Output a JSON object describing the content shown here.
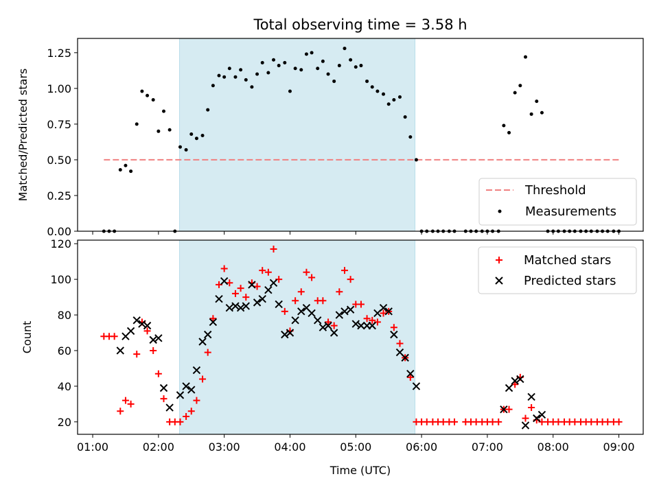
{
  "chart_data": [
    {
      "type": "scatter",
      "title": "Total observing time = 3.58 h",
      "xlabel": "",
      "ylabel": "Matched/Predicted stars",
      "ylim": [
        0,
        1.35
      ],
      "yticks": [
        0.0,
        0.25,
        0.5,
        0.75,
        1.0,
        1.25
      ],
      "ytick_labels": [
        "0.00",
        "0.25",
        "0.50",
        "0.75",
        "1.00",
        "1.25"
      ],
      "x_unit": "hours (UTC)",
      "shaded_interval": [
        2.32,
        5.9
      ],
      "threshold": {
        "name": "Threshold",
        "value": 0.5,
        "x_range": [
          1.17,
          9.0
        ],
        "color": "#f08080"
      },
      "series": [
        {
          "name": "Measurements",
          "color": "#000000",
          "points": [
            [
              1.17,
              0.0
            ],
            [
              1.25,
              0.0
            ],
            [
              1.33,
              0.0
            ],
            [
              1.42,
              0.43
            ],
            [
              1.5,
              0.46
            ],
            [
              1.58,
              0.42
            ],
            [
              1.67,
              0.75
            ],
            [
              1.75,
              0.98
            ],
            [
              1.83,
              0.95
            ],
            [
              1.92,
              0.92
            ],
            [
              2.0,
              0.7
            ],
            [
              2.08,
              0.84
            ],
            [
              2.17,
              0.71
            ],
            [
              2.25,
              0.0
            ],
            [
              2.33,
              0.59
            ],
            [
              2.42,
              0.57
            ],
            [
              2.5,
              0.68
            ],
            [
              2.58,
              0.65
            ],
            [
              2.67,
              0.67
            ],
            [
              2.75,
              0.85
            ],
            [
              2.83,
              1.02
            ],
            [
              2.92,
              1.09
            ],
            [
              3.0,
              1.08
            ],
            [
              3.08,
              1.14
            ],
            [
              3.17,
              1.08
            ],
            [
              3.25,
              1.13
            ],
            [
              3.33,
              1.06
            ],
            [
              3.42,
              1.01
            ],
            [
              3.5,
              1.1
            ],
            [
              3.58,
              1.18
            ],
            [
              3.67,
              1.11
            ],
            [
              3.75,
              1.2
            ],
            [
              3.83,
              1.16
            ],
            [
              3.92,
              1.18
            ],
            [
              4.0,
              0.98
            ],
            [
              4.08,
              1.14
            ],
            [
              4.17,
              1.13
            ],
            [
              4.25,
              1.24
            ],
            [
              4.33,
              1.25
            ],
            [
              4.42,
              1.14
            ],
            [
              4.5,
              1.19
            ],
            [
              4.58,
              1.1
            ],
            [
              4.67,
              1.05
            ],
            [
              4.75,
              1.16
            ],
            [
              4.83,
              1.28
            ],
            [
              4.92,
              1.2
            ],
            [
              5.0,
              1.15
            ],
            [
              5.08,
              1.16
            ],
            [
              5.17,
              1.05
            ],
            [
              5.25,
              1.01
            ],
            [
              5.33,
              0.98
            ],
            [
              5.42,
              0.96
            ],
            [
              5.5,
              0.89
            ],
            [
              5.58,
              0.92
            ],
            [
              5.67,
              0.94
            ],
            [
              5.75,
              0.8
            ],
            [
              5.83,
              0.66
            ],
            [
              5.92,
              0.5
            ],
            [
              6.0,
              0.0
            ],
            [
              6.08,
              0.0
            ],
            [
              6.17,
              0.0
            ],
            [
              6.25,
              0.0
            ],
            [
              6.33,
              0.0
            ],
            [
              6.42,
              0.0
            ],
            [
              6.5,
              0.0
            ],
            [
              6.67,
              0.0
            ],
            [
              6.75,
              0.0
            ],
            [
              6.83,
              0.0
            ],
            [
              6.92,
              0.0
            ],
            [
              7.0,
              0.0
            ],
            [
              7.08,
              0.0
            ],
            [
              7.17,
              0.0
            ],
            [
              7.25,
              0.74
            ],
            [
              7.33,
              0.69
            ],
            [
              7.42,
              0.97
            ],
            [
              7.5,
              1.02
            ],
            [
              7.58,
              1.22
            ],
            [
              7.67,
              0.82
            ],
            [
              7.75,
              0.91
            ],
            [
              7.83,
              0.83
            ],
            [
              7.92,
              0.0
            ],
            [
              8.0,
              0.0
            ],
            [
              8.08,
              0.0
            ],
            [
              8.17,
              0.0
            ],
            [
              8.25,
              0.0
            ],
            [
              8.33,
              0.0
            ],
            [
              8.42,
              0.0
            ],
            [
              8.5,
              0.0
            ],
            [
              8.58,
              0.0
            ],
            [
              8.67,
              0.0
            ],
            [
              8.75,
              0.0
            ],
            [
              8.83,
              0.0
            ],
            [
              8.92,
              0.0
            ],
            [
              9.0,
              0.0
            ]
          ]
        }
      ],
      "legend": {
        "position": "lower-right",
        "entries": [
          "Threshold",
          "Measurements"
        ]
      },
      "grid": false
    },
    {
      "type": "scatter",
      "title": "",
      "xlabel": "Time (UTC)",
      "ylabel": "Count",
      "ylim": [
        13,
        122
      ],
      "yticks": [
        20,
        40,
        60,
        80,
        100,
        120
      ],
      "ytick_labels": [
        "20",
        "40",
        "60",
        "80",
        "100",
        "120"
      ],
      "xlim": [
        0.77,
        9.37
      ],
      "xticks": [
        1,
        2,
        3,
        4,
        5,
        6,
        7,
        8,
        9
      ],
      "xtick_labels": [
        "01:00",
        "02:00",
        "03:00",
        "04:00",
        "05:00",
        "06:00",
        "07:00",
        "08:00",
        "09:00"
      ],
      "x_unit": "hours (UTC)",
      "shaded_interval": [
        2.32,
        5.9
      ],
      "series": [
        {
          "name": "Matched stars",
          "marker": "plus",
          "color": "#ff0000",
          "points": [
            [
              1.17,
              68
            ],
            [
              1.25,
              68
            ],
            [
              1.33,
              68
            ],
            [
              1.42,
              26
            ],
            [
              1.5,
              32
            ],
            [
              1.58,
              30
            ],
            [
              1.67,
              58
            ],
            [
              1.75,
              76
            ],
            [
              1.83,
              71
            ],
            [
              1.92,
              60
            ],
            [
              2.0,
              47
            ],
            [
              2.08,
              33
            ],
            [
              2.17,
              20
            ],
            [
              2.25,
              20
            ],
            [
              2.33,
              20
            ],
            [
              2.42,
              23
            ],
            [
              2.5,
              26
            ],
            [
              2.58,
              32
            ],
            [
              2.67,
              44
            ],
            [
              2.75,
              59
            ],
            [
              2.83,
              78
            ],
            [
              2.92,
              97
            ],
            [
              3.0,
              106
            ],
            [
              3.08,
              98
            ],
            [
              3.17,
              92
            ],
            [
              3.25,
              95
            ],
            [
              3.33,
              90
            ],
            [
              3.42,
              98
            ],
            [
              3.5,
              96
            ],
            [
              3.58,
              105
            ],
            [
              3.67,
              104
            ],
            [
              3.75,
              117
            ],
            [
              3.83,
              100
            ],
            [
              3.92,
              82
            ],
            [
              4.0,
              71
            ],
            [
              4.08,
              88
            ],
            [
              4.17,
              93
            ],
            [
              4.25,
              104
            ],
            [
              4.33,
              101
            ],
            [
              4.42,
              88
            ],
            [
              4.5,
              88
            ],
            [
              4.58,
              76
            ],
            [
              4.67,
              74
            ],
            [
              4.75,
              93
            ],
            [
              4.83,
              105
            ],
            [
              4.92,
              100
            ],
            [
              5.0,
              86
            ],
            [
              5.08,
              86
            ],
            [
              5.17,
              78
            ],
            [
              5.25,
              77
            ],
            [
              5.33,
              76
            ],
            [
              5.42,
              81
            ],
            [
              5.5,
              82
            ],
            [
              5.58,
              73
            ],
            [
              5.67,
              64
            ],
            [
              5.75,
              56
            ],
            [
              5.83,
              45
            ],
            [
              5.92,
              20
            ],
            [
              6.0,
              20
            ],
            [
              6.08,
              20
            ],
            [
              6.17,
              20
            ],
            [
              6.25,
              20
            ],
            [
              6.33,
              20
            ],
            [
              6.42,
              20
            ],
            [
              6.5,
              20
            ],
            [
              6.67,
              20
            ],
            [
              6.75,
              20
            ],
            [
              6.83,
              20
            ],
            [
              6.92,
              20
            ],
            [
              7.0,
              20
            ],
            [
              7.08,
              20
            ],
            [
              7.17,
              20
            ],
            [
              7.25,
              27
            ],
            [
              7.33,
              27
            ],
            [
              7.42,
              41
            ],
            [
              7.5,
              45
            ],
            [
              7.58,
              22
            ],
            [
              7.67,
              28
            ],
            [
              7.75,
              21
            ],
            [
              7.83,
              20
            ],
            [
              7.92,
              20
            ],
            [
              8.0,
              20
            ],
            [
              8.08,
              20
            ],
            [
              8.17,
              20
            ],
            [
              8.25,
              20
            ],
            [
              8.33,
              20
            ],
            [
              8.42,
              20
            ],
            [
              8.5,
              20
            ],
            [
              8.58,
              20
            ],
            [
              8.67,
              20
            ],
            [
              8.75,
              20
            ],
            [
              8.83,
              20
            ],
            [
              8.92,
              20
            ],
            [
              9.0,
              20
            ]
          ]
        },
        {
          "name": "Predicted stars",
          "marker": "x",
          "color": "#000000",
          "points": [
            [
              1.42,
              60
            ],
            [
              1.5,
              68
            ],
            [
              1.58,
              71
            ],
            [
              1.67,
              77
            ],
            [
              1.75,
              75
            ],
            [
              1.83,
              74
            ],
            [
              1.92,
              66
            ],
            [
              2.0,
              67
            ],
            [
              2.08,
              39
            ],
            [
              2.17,
              28
            ],
            [
              2.33,
              35
            ],
            [
              2.42,
              40
            ],
            [
              2.5,
              38
            ],
            [
              2.58,
              49
            ],
            [
              2.67,
              65
            ],
            [
              2.75,
              69
            ],
            [
              2.83,
              76
            ],
            [
              2.92,
              89
            ],
            [
              3.0,
              99
            ],
            [
              3.08,
              84
            ],
            [
              3.17,
              85
            ],
            [
              3.25,
              84
            ],
            [
              3.33,
              85
            ],
            [
              3.42,
              97
            ],
            [
              3.5,
              87
            ],
            [
              3.58,
              89
            ],
            [
              3.67,
              94
            ],
            [
              3.75,
              98
            ],
            [
              3.83,
              86
            ],
            [
              3.92,
              69
            ],
            [
              4.0,
              70
            ],
            [
              4.08,
              77
            ],
            [
              4.17,
              82
            ],
            [
              4.25,
              84
            ],
            [
              4.33,
              81
            ],
            [
              4.42,
              77
            ],
            [
              4.5,
              73
            ],
            [
              4.58,
              74
            ],
            [
              4.67,
              70
            ],
            [
              4.75,
              80
            ],
            [
              4.83,
              82
            ],
            [
              4.92,
              83
            ],
            [
              5.0,
              75
            ],
            [
              5.08,
              74
            ],
            [
              5.17,
              74
            ],
            [
              5.25,
              74
            ],
            [
              5.33,
              81
            ],
            [
              5.42,
              84
            ],
            [
              5.5,
              82
            ],
            [
              5.58,
              69
            ],
            [
              5.67,
              59
            ],
            [
              5.75,
              56
            ],
            [
              5.83,
              47
            ],
            [
              5.92,
              40
            ],
            [
              7.25,
              27
            ],
            [
              7.33,
              39
            ],
            [
              7.42,
              43
            ],
            [
              7.5,
              44
            ],
            [
              7.58,
              18
            ],
            [
              7.67,
              34
            ],
            [
              7.75,
              22
            ],
            [
              7.83,
              24
            ]
          ]
        }
      ],
      "legend": {
        "position": "top-right",
        "entries": [
          "Matched stars",
          "Predicted stars"
        ]
      },
      "grid": false
    }
  ]
}
